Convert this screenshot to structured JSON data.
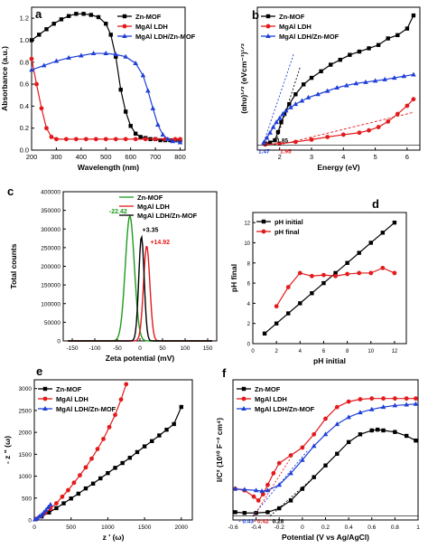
{
  "chart_data": [
    {
      "panel": "a",
      "type": "line",
      "xlabel": "Wavelength (nm)",
      "ylabel": "Absorbance (a.u.)",
      "xlim": [
        200,
        820
      ],
      "ylim": [
        0,
        1.3
      ],
      "xticks": [
        200,
        300,
        400,
        500,
        600,
        700,
        800
      ],
      "yticks": [
        0.0,
        0.2,
        0.4,
        0.6,
        0.8,
        1.0,
        1.2
      ],
      "legend": "top-right",
      "series": [
        {
          "name": "Zn-MOF",
          "color": "#000000",
          "marker": "square",
          "x": [
            200,
            230,
            260,
            290,
            320,
            350,
            380,
            410,
            440,
            470,
            500,
            520,
            540,
            560,
            580,
            600,
            620,
            640,
            660,
            680,
            700,
            720,
            740,
            760,
            780,
            800
          ],
          "y": [
            1.0,
            1.05,
            1.1,
            1.15,
            1.19,
            1.22,
            1.24,
            1.24,
            1.23,
            1.21,
            1.15,
            1.05,
            0.85,
            0.55,
            0.35,
            0.22,
            0.15,
            0.12,
            0.11,
            0.1,
            0.1,
            0.09,
            0.09,
            0.09,
            0.09,
            0.09
          ]
        },
        {
          "name": "MgAl LDH",
          "color": "#e31a1c",
          "marker": "circle",
          "x": [
            200,
            220,
            240,
            260,
            280,
            300,
            340,
            380,
            420,
            460,
            500,
            540,
            580,
            620,
            660,
            700,
            740,
            780,
            800
          ],
          "y": [
            0.83,
            0.6,
            0.38,
            0.2,
            0.12,
            0.1,
            0.1,
            0.1,
            0.1,
            0.1,
            0.1,
            0.1,
            0.1,
            0.1,
            0.1,
            0.1,
            0.1,
            0.1,
            0.1
          ]
        },
        {
          "name": "MgAl LDH/Zn-MOF",
          "color": "#1f3fd6",
          "marker": "triangle",
          "x": [
            200,
            250,
            300,
            350,
            400,
            450,
            500,
            540,
            580,
            620,
            650,
            670,
            690,
            710,
            730,
            750,
            770,
            800
          ],
          "y": [
            0.73,
            0.77,
            0.81,
            0.84,
            0.86,
            0.88,
            0.88,
            0.87,
            0.85,
            0.79,
            0.68,
            0.54,
            0.38,
            0.23,
            0.14,
            0.1,
            0.08,
            0.07
          ]
        }
      ]
    },
    {
      "panel": "b",
      "type": "line",
      "xlabel": "Energy (eV)",
      "ylabel": "(αhυ)¹ᐟ² (eVcm⁻¹)¹ᐟ²",
      "xlim": [
        1.3,
        6.4
      ],
      "xticks": [
        2,
        3,
        4,
        5,
        6
      ],
      "legend": "top-left",
      "annotations": [
        "1.47",
        "1.85",
        "1.95"
      ],
      "series": [
        {
          "name": "Zn-MOF",
          "color": "#000000",
          "marker": "square",
          "x": [
            1.55,
            1.7,
            1.85,
            1.95,
            2.05,
            2.15,
            2.3,
            2.5,
            2.75,
            3.0,
            3.3,
            3.6,
            3.9,
            4.2,
            4.5,
            4.8,
            5.1,
            5.4,
            5.7,
            6.0,
            6.2
          ],
          "y": [
            0.05,
            0.08,
            0.15,
            0.4,
            0.7,
            0.95,
            1.25,
            1.55,
            1.85,
            2.05,
            2.25,
            2.45,
            2.6,
            2.75,
            2.85,
            2.95,
            3.05,
            3.25,
            3.35,
            3.55,
            3.95
          ]
        },
        {
          "name": "MgAl LDH",
          "color": "#e31a1c",
          "marker": "circle",
          "x": [
            1.55,
            2.0,
            2.5,
            3.0,
            3.5,
            4.0,
            4.5,
            4.8,
            5.1,
            5.4,
            5.7,
            6.0,
            6.2
          ],
          "y": [
            0.02,
            0.05,
            0.1,
            0.17,
            0.25,
            0.32,
            0.38,
            0.45,
            0.55,
            0.72,
            0.95,
            1.2,
            1.4
          ]
        },
        {
          "name": "MgAl LDH/Zn-MOF",
          "color": "#1f3fd6",
          "marker": "triangle",
          "x": [
            1.5,
            1.6,
            1.7,
            1.8,
            1.9,
            2.0,
            2.1,
            2.2,
            2.35,
            2.5,
            2.7,
            2.9,
            3.2,
            3.5,
            3.8,
            4.1,
            4.4,
            4.7,
            5.0,
            5.3,
            5.6,
            5.9,
            6.2
          ],
          "y": [
            0.08,
            0.22,
            0.38,
            0.55,
            0.7,
            0.82,
            0.95,
            1.05,
            1.15,
            1.25,
            1.35,
            1.45,
            1.55,
            1.65,
            1.75,
            1.82,
            1.88,
            1.92,
            1.96,
            2.0,
            2.05,
            2.1,
            2.15
          ]
        }
      ]
    },
    {
      "panel": "c",
      "type": "line",
      "xlabel": "Zeta potential (mV)",
      "ylabel": "Total counts",
      "xlim": [
        -170,
        170
      ],
      "ylim": [
        0,
        400000
      ],
      "xticks": [
        -150,
        -100,
        -50,
        0,
        50,
        100,
        150
      ],
      "yticks": [
        0,
        50000,
        100000,
        150000,
        200000,
        250000,
        300000,
        350000,
        400000
      ],
      "legend": "top-right",
      "annotations": [
        "-22.42",
        "+3.35",
        "+14.92"
      ],
      "series": [
        {
          "name": "Zn-MOF",
          "color": "#1e9b1e",
          "center": -22.42,
          "peak": 335000,
          "sigma": 10
        },
        {
          "name": "MgAl LDH",
          "color": "#e31a1c",
          "center": 14.92,
          "peak": 255000,
          "sigma": 7
        },
        {
          "name": "MgAl LDH/Zn-MOF",
          "color": "#000000",
          "center": 3.35,
          "peak": 280000,
          "sigma": 6
        }
      ]
    },
    {
      "panel": "d",
      "type": "line",
      "xlabel": "pH initial",
      "ylabel": "pH final",
      "xlim": [
        0,
        13
      ],
      "ylim": [
        0,
        13
      ],
      "xticks": [
        0,
        2,
        4,
        6,
        8,
        10,
        12
      ],
      "yticks": [
        0,
        2,
        4,
        6,
        8,
        10,
        12
      ],
      "legend": "top-left",
      "series": [
        {
          "name": "pH initial",
          "color": "#000000",
          "marker": "square",
          "x": [
            1,
            2,
            3,
            4,
            5,
            6,
            7,
            8,
            9,
            10,
            11,
            12
          ],
          "y": [
            1,
            2,
            3,
            4,
            5,
            6,
            7,
            8,
            9,
            10,
            11,
            12
          ]
        },
        {
          "name": "pH final",
          "color": "#e31a1c",
          "marker": "circle",
          "x": [
            2,
            3,
            4,
            5,
            6,
            7,
            8,
            9,
            10,
            11,
            12
          ],
          "y": [
            3.7,
            5.6,
            7.0,
            6.7,
            6.8,
            6.7,
            6.9,
            7.0,
            7.0,
            7.5,
            7.0
          ]
        }
      ]
    },
    {
      "panel": "e",
      "type": "line",
      "xlabel": "z ' (ω)",
      "ylabel": "- z \" (ω)",
      "xlim": [
        0,
        2150
      ],
      "ylim": [
        0,
        3200
      ],
      "xticks": [
        0,
        500,
        1000,
        1500,
        2000
      ],
      "yticks": [
        0,
        500,
        1000,
        1500,
        2000,
        2500,
        3000
      ],
      "legend": "top-left",
      "series": [
        {
          "name": "Zn-MOF",
          "color": "#000000",
          "marker": "square",
          "x": [
            20,
            100,
            200,
            300,
            400,
            500,
            600,
            700,
            800,
            900,
            1000,
            1100,
            1200,
            1300,
            1400,
            1500,
            1600,
            1700,
            1800,
            1900,
            2000
          ],
          "y": [
            20,
            80,
            170,
            270,
            380,
            490,
            600,
            720,
            830,
            950,
            1070,
            1190,
            1300,
            1420,
            1550,
            1680,
            1800,
            1930,
            2060,
            2190,
            2580
          ]
        },
        {
          "name": "MgAl LDH",
          "color": "#e31a1c",
          "marker": "circle",
          "x": [
            20,
            80,
            150,
            220,
            300,
            380,
            460,
            540,
            620,
            700,
            780,
            860,
            940,
            1020,
            1100,
            1180,
            1250
          ],
          "y": [
            20,
            80,
            160,
            260,
            380,
            530,
            680,
            850,
            1020,
            1200,
            1400,
            1620,
            1850,
            2120,
            2400,
            2750,
            3100
          ]
        },
        {
          "name": "MgAl LDH/Zn-MOF",
          "color": "#1f3fd6",
          "marker": "triangle",
          "x": [
            10,
            40,
            70,
            100,
            130,
            160,
            190,
            220
          ],
          "y": [
            10,
            40,
            80,
            120,
            170,
            230,
            290,
            350
          ]
        }
      ]
    },
    {
      "panel": "f",
      "type": "line",
      "xlabel": "Potential (V vs Ag/AgCl)",
      "ylabel": "l/C² (10¹⁰ F⁻² cm⁴)",
      "xlim": [
        -0.6,
        1.0
      ],
      "xticks": [
        -0.6,
        -0.4,
        -0.2,
        0.0,
        0.2,
        0.4,
        0.6,
        0.8,
        1.0
      ],
      "legend": "top-left",
      "annotations": [
        "0.43",
        "0.42",
        "0.28"
      ],
      "series": [
        {
          "name": "Zn-MOF",
          "color": "#000000",
          "marker": "square",
          "x": [
            -0.58,
            -0.5,
            -0.4,
            -0.3,
            -0.2,
            -0.1,
            0.0,
            0.1,
            0.2,
            0.3,
            0.4,
            0.5,
            0.6,
            0.65,
            0.7,
            0.8,
            0.9,
            0.98
          ],
          "y": [
            0.05,
            0.04,
            0.04,
            0.05,
            0.1,
            0.2,
            0.35,
            0.5,
            0.65,
            0.8,
            0.95,
            1.05,
            1.1,
            1.11,
            1.1,
            1.08,
            1.03,
            0.97
          ]
        },
        {
          "name": "MgAl LDH",
          "color": "#e31a1c",
          "marker": "circle",
          "x": [
            -0.58,
            -0.5,
            -0.42,
            -0.38,
            -0.34,
            -0.3,
            -0.25,
            -0.2,
            -0.1,
            0.0,
            0.1,
            0.2,
            0.3,
            0.4,
            0.5,
            0.6,
            0.7,
            0.8,
            0.9,
            0.98
          ],
          "y": [
            0.35,
            0.33,
            0.25,
            0.2,
            0.28,
            0.4,
            0.55,
            0.68,
            0.78,
            0.88,
            1.05,
            1.25,
            1.4,
            1.47,
            1.5,
            1.51,
            1.51,
            1.51,
            1.51,
            1.51
          ]
        },
        {
          "name": "MgAl LDH/Zn-MOF",
          "color": "#1f3fd6",
          "marker": "triangle",
          "x": [
            -0.58,
            -0.5,
            -0.4,
            -0.35,
            -0.3,
            -0.2,
            -0.1,
            0.0,
            0.1,
            0.2,
            0.3,
            0.4,
            0.5,
            0.6,
            0.7,
            0.8,
            0.9,
            0.98
          ],
          "y": [
            0.35,
            0.34,
            0.33,
            0.32,
            0.33,
            0.4,
            0.55,
            0.72,
            0.9,
            1.05,
            1.18,
            1.27,
            1.33,
            1.37,
            1.4,
            1.42,
            1.43,
            1.44
          ]
        }
      ]
    }
  ]
}
